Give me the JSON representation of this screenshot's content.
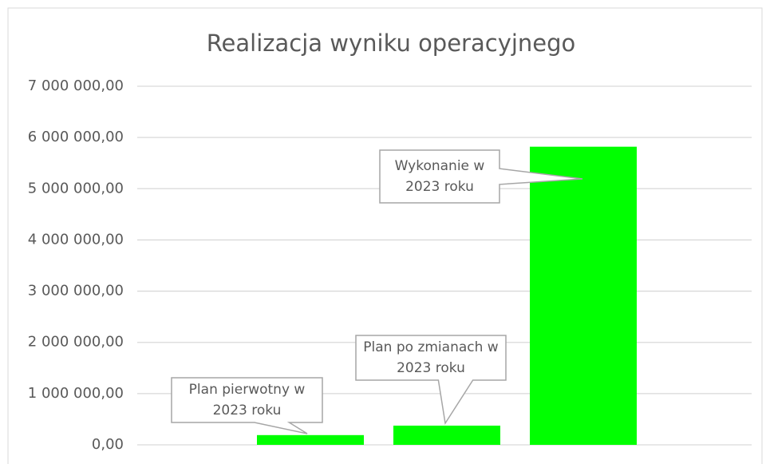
{
  "chart_data": {
    "type": "bar",
    "title": "Realizacja wyniku operacyjnego",
    "categories": [
      "Plan pierwotny w 2023 roku",
      "Plan po zmianach w 2023 roku",
      "Wykonanie w 2023 roku"
    ],
    "values": [
      190000,
      375000,
      5820000
    ],
    "color": "#00ff00",
    "ylim": [
      0,
      7000000
    ],
    "yticks": [
      {
        "value": 0,
        "label": "0,00"
      },
      {
        "value": 1000000,
        "label": "1 000 000,00"
      },
      {
        "value": 2000000,
        "label": "2 000 000,00"
      },
      {
        "value": 3000000,
        "label": "3 000 000,00"
      },
      {
        "value": 4000000,
        "label": "4 000 000,00"
      },
      {
        "value": 5000000,
        "label": "5 000 000,00"
      },
      {
        "value": 6000000,
        "label": "6 000 000,00"
      },
      {
        "value": 7000000,
        "label": "7 000 000,00"
      }
    ],
    "grid": true
  }
}
